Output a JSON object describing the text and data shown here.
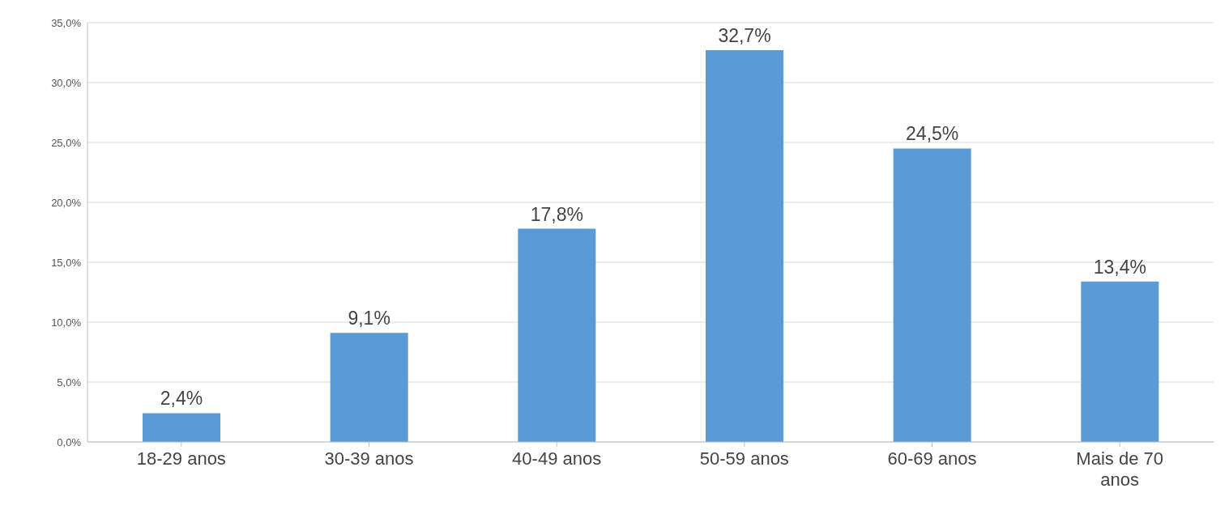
{
  "chart_data": {
    "type": "bar",
    "categories": [
      "18-29 anos",
      "30-39 anos",
      "40-49 anos",
      "50-59 anos",
      "60-69 anos",
      "Mais de 70 anos"
    ],
    "values": [
      2.4,
      9.1,
      17.8,
      32.7,
      24.5,
      13.4
    ],
    "value_labels": [
      "2,4%",
      "9,1%",
      "17,8%",
      "32,7%",
      "24,5%",
      "13,4%"
    ],
    "color": "#5b9bd5",
    "ylim": [
      0,
      35
    ],
    "yticks": [
      {
        "value": 0,
        "label": "0,0%"
      },
      {
        "value": 5,
        "label": "5,0%"
      },
      {
        "value": 10,
        "label": "10,0%"
      },
      {
        "value": 15,
        "label": "15,0%"
      },
      {
        "value": 20,
        "label": "20,0%"
      },
      {
        "value": 25,
        "label": "25,0%"
      },
      {
        "value": 30,
        "label": "30,0%"
      },
      {
        "value": 35,
        "label": "35,0%"
      }
    ],
    "grid": "y"
  }
}
